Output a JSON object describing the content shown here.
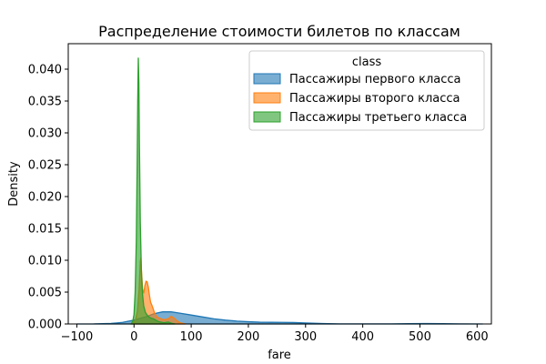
{
  "chart_data": {
    "type": "area",
    "title": "Распределение стоимости билетов по классам",
    "xlabel": "fare",
    "ylabel": "Density",
    "xlim": [
      -115,
      625
    ],
    "ylim": [
      0,
      0.044
    ],
    "xticks": [
      -100,
      0,
      100,
      200,
      300,
      400,
      500,
      600
    ],
    "yticks": [
      0.0,
      0.005,
      0.01,
      0.015,
      0.02,
      0.025,
      0.03,
      0.035,
      0.04
    ],
    "grid": false,
    "legend": {
      "title": "class",
      "placement": "top-right"
    },
    "series": [
      {
        "name": "Пассажиры первого класса",
        "color": "#1f77b4",
        "points": [
          [
            -100,
            0.0
          ],
          [
            -70,
            1e-05
          ],
          [
            -40,
            8e-05
          ],
          [
            -20,
            0.00025
          ],
          [
            0,
            0.0006
          ],
          [
            20,
            0.0011
          ],
          [
            35,
            0.0016
          ],
          [
            50,
            0.0019
          ],
          [
            65,
            0.0019
          ],
          [
            80,
            0.0017
          ],
          [
            100,
            0.0014
          ],
          [
            120,
            0.0011
          ],
          [
            140,
            0.0008
          ],
          [
            160,
            0.0006
          ],
          [
            180,
            0.00045
          ],
          [
            200,
            0.00035
          ],
          [
            220,
            0.00028
          ],
          [
            240,
            0.00026
          ],
          [
            260,
            0.00025
          ],
          [
            280,
            0.00022
          ],
          [
            300,
            0.00016
          ],
          [
            330,
            7e-05
          ],
          [
            360,
            2e-05
          ],
          [
            400,
            1e-05
          ],
          [
            450,
            2e-05
          ],
          [
            480,
            5e-05
          ],
          [
            510,
            7e-05
          ],
          [
            540,
            5e-05
          ],
          [
            570,
            2e-05
          ],
          [
            610,
            0.0
          ]
        ]
      },
      {
        "name": "Пассажиры второго класса",
        "color": "#ff7f0e",
        "points": [
          [
            -5,
            0.0
          ],
          [
            0,
            0.0002
          ],
          [
            3,
            0.0008
          ],
          [
            6,
            0.002
          ],
          [
            9,
            0.0055
          ],
          [
            11,
            0.0098
          ],
          [
            12,
            0.0104
          ],
          [
            13,
            0.0085
          ],
          [
            15,
            0.0055
          ],
          [
            17,
            0.0048
          ],
          [
            19,
            0.006
          ],
          [
            21,
            0.0067
          ],
          [
            23,
            0.0066
          ],
          [
            25,
            0.0058
          ],
          [
            27,
            0.0045
          ],
          [
            29,
            0.0034
          ],
          [
            31,
            0.003
          ],
          [
            33,
            0.0025
          ],
          [
            36,
            0.0017
          ],
          [
            40,
            0.0011
          ],
          [
            45,
            0.0009
          ],
          [
            50,
            0.0007
          ],
          [
            55,
            0.0007
          ],
          [
            60,
            0.0008
          ],
          [
            65,
            0.0012
          ],
          [
            70,
            0.0009
          ],
          [
            75,
            0.0005
          ],
          [
            80,
            0.0002
          ],
          [
            90,
            0.0
          ]
        ]
      },
      {
        "name": "Пассажиры третьего класса",
        "color": "#2ca02c",
        "points": [
          [
            -5,
            0.0
          ],
          [
            -2,
            0.0005
          ],
          [
            0,
            0.0015
          ],
          [
            2,
            0.005
          ],
          [
            4,
            0.013
          ],
          [
            5.5,
            0.025
          ],
          [
            6.5,
            0.035
          ],
          [
            7.5,
            0.0418
          ],
          [
            8.5,
            0.038
          ],
          [
            9.5,
            0.028
          ],
          [
            11,
            0.016
          ],
          [
            13,
            0.008
          ],
          [
            15,
            0.0045
          ],
          [
            17,
            0.0028
          ],
          [
            20,
            0.0018
          ],
          [
            23,
            0.0014
          ],
          [
            26,
            0.0011
          ],
          [
            30,
            0.0009
          ],
          [
            34,
            0.0008
          ],
          [
            38,
            0.0006
          ],
          [
            42,
            0.0004
          ],
          [
            46,
            0.0003
          ],
          [
            52,
            0.0002
          ],
          [
            56,
            0.00025
          ],
          [
            60,
            0.0003
          ],
          [
            66,
            0.0001
          ],
          [
            72,
            0.0
          ]
        ]
      }
    ]
  }
}
